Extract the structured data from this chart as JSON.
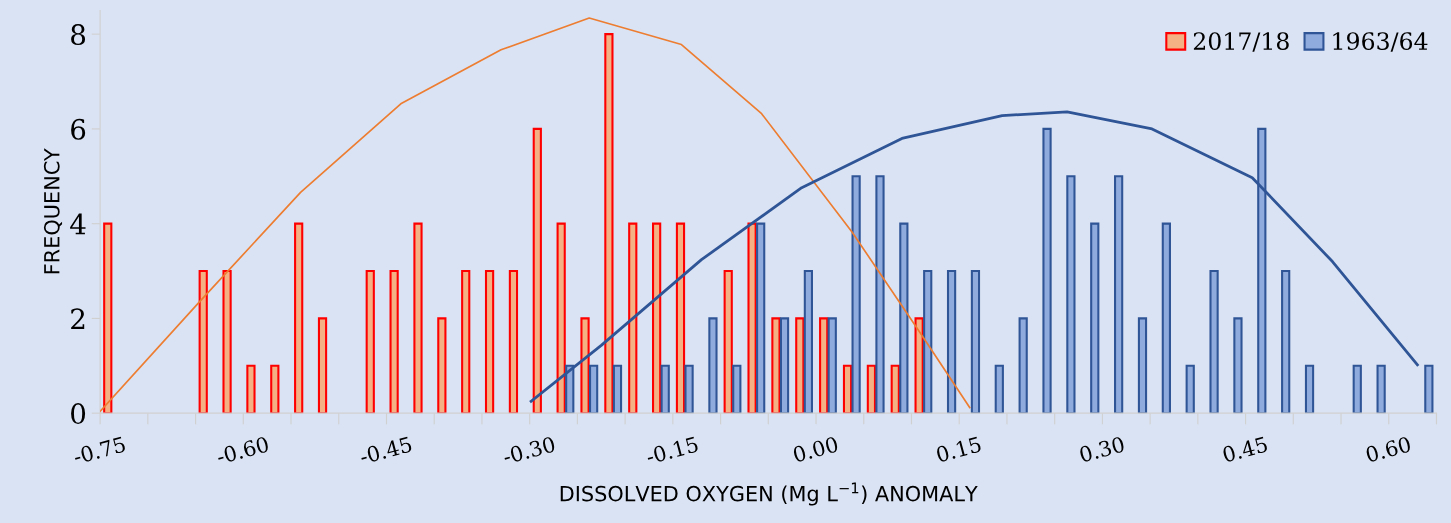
{
  "chart_data": {
    "type": "bar",
    "xlabel": "DISSOLVED OXYGEN (Mg L$^{−1}$) ANOMALY",
    "ylabel": "FREQUENCY",
    "xlim": [
      -0.75,
      0.65
    ],
    "xticks": [
      {
        "value": -0.75,
        "label": "-0.75"
      },
      {
        "value": -0.7,
        "label": null
      },
      {
        "value": -0.65,
        "label": null
      },
      {
        "value": -0.6,
        "label": "-0.60"
      },
      {
        "value": -0.55,
        "label": null
      },
      {
        "value": -0.5,
        "label": null
      },
      {
        "value": -0.45,
        "label": "-0.45"
      },
      {
        "value": -0.4,
        "label": null
      },
      {
        "value": -0.35,
        "label": null
      },
      {
        "value": -0.3,
        "label": "-0.30"
      },
      {
        "value": -0.25,
        "label": null
      },
      {
        "value": -0.2,
        "label": null
      },
      {
        "value": -0.15,
        "label": "-0.15"
      },
      {
        "value": -0.1,
        "label": null
      },
      {
        "value": -0.05,
        "label": null
      },
      {
        "value": 0,
        "label": "0.00"
      },
      {
        "value": 0.05,
        "label": null
      },
      {
        "value": 0.1,
        "label": null
      },
      {
        "value": 0.15,
        "label": "0.15"
      },
      {
        "value": 0.2,
        "label": null
      },
      {
        "value": 0.25,
        "label": null
      },
      {
        "value": 0.3,
        "label": "0.30"
      },
      {
        "value": 0.35,
        "label": null
      },
      {
        "value": 0.4,
        "label": null
      },
      {
        "value": 0.45,
        "label": "0.45"
      },
      {
        "value": 0.5,
        "label": null
      },
      {
        "value": 0.55,
        "label": null
      },
      {
        "value": 0.6,
        "label": "0.60"
      },
      {
        "value": 0.65,
        "label": null
      }
    ],
    "ylim": [
      0,
      8.5
    ],
    "yticks": [
      0,
      2,
      4,
      6,
      8
    ],
    "legend": "top right",
    "grid": false,
    "series": [
      {
        "name": "2017/18",
        "color": "#f4b183",
        "x": [
          -0.7375,
          -0.6375,
          -0.6125,
          -0.5875,
          -0.5625,
          -0.5375,
          -0.5125,
          -0.4625,
          -0.4375,
          -0.4125,
          -0.3875,
          -0.3625,
          -0.3375,
          -0.3125,
          -0.2875,
          -0.2625,
          -0.2375,
          -0.2125,
          -0.1875,
          -0.1625,
          -0.1375,
          -0.0875,
          -0.0625,
          -0.0375,
          -0.0125,
          0.0125,
          0.0375,
          0.0625,
          0.0875,
          0.1125
        ],
        "values": [
          4,
          3,
          3,
          1,
          1,
          4,
          2,
          3,
          3,
          4,
          2,
          3,
          3,
          3,
          6,
          4,
          2,
          8,
          4,
          4,
          4,
          3,
          4,
          2,
          2,
          2,
          1,
          1,
          1,
          2
        ]
      },
      {
        "name": "1963/64",
        "color": "#8faadc",
        "x": [
          -0.2625,
          -0.2375,
          -0.2125,
          -0.1625,
          -0.1375,
          -0.1125,
          -0.0875,
          -0.0625,
          -0.0375,
          -0.0125,
          0.0125,
          0.0375,
          0.0625,
          0.0875,
          0.1125,
          0.1375,
          0.1625,
          0.1875,
          0.2125,
          0.2375,
          0.2625,
          0.2875,
          0.3125,
          0.3375,
          0.3625,
          0.3875,
          0.4125,
          0.4375,
          0.4625,
          0.4875,
          0.5125,
          0.5625,
          0.5875,
          0.6375
        ],
        "values": [
          1,
          1,
          1,
          1,
          1,
          2,
          1,
          4,
          2,
          3,
          2,
          5,
          5,
          4,
          3,
          3,
          3,
          1,
          2,
          6,
          5,
          4,
          5,
          2,
          4,
          1,
          3,
          2,
          6,
          3,
          1,
          1,
          1,
          1
        ]
      },
      {
        "type": "line",
        "color": "#ed7d31",
        "x": [
          -0.75,
          -0.645,
          -0.54,
          -0.435,
          -0.33,
          -0.2376,
          -0.141,
          -0.057,
          0.0375,
          0.111,
          0.161
        ],
        "values": [
          0.04,
          2.37,
          4.66,
          6.53,
          7.67,
          8.34,
          7.78,
          6.32,
          3.83,
          1.64,
          0.12
        ]
      },
      {
        "type": "line",
        "color": "#2f5597",
        "x": [
          -0.2985,
          -0.225,
          -0.12,
          -0.015,
          0.09,
          0.195,
          0.263,
          0.352,
          0.457,
          0.541,
          0.63
        ],
        "values": [
          0.25,
          1.43,
          3.24,
          4.76,
          5.8,
          6.28,
          6.36,
          6.0,
          4.97,
          3.2,
          1.02
        ]
      }
    ]
  }
}
